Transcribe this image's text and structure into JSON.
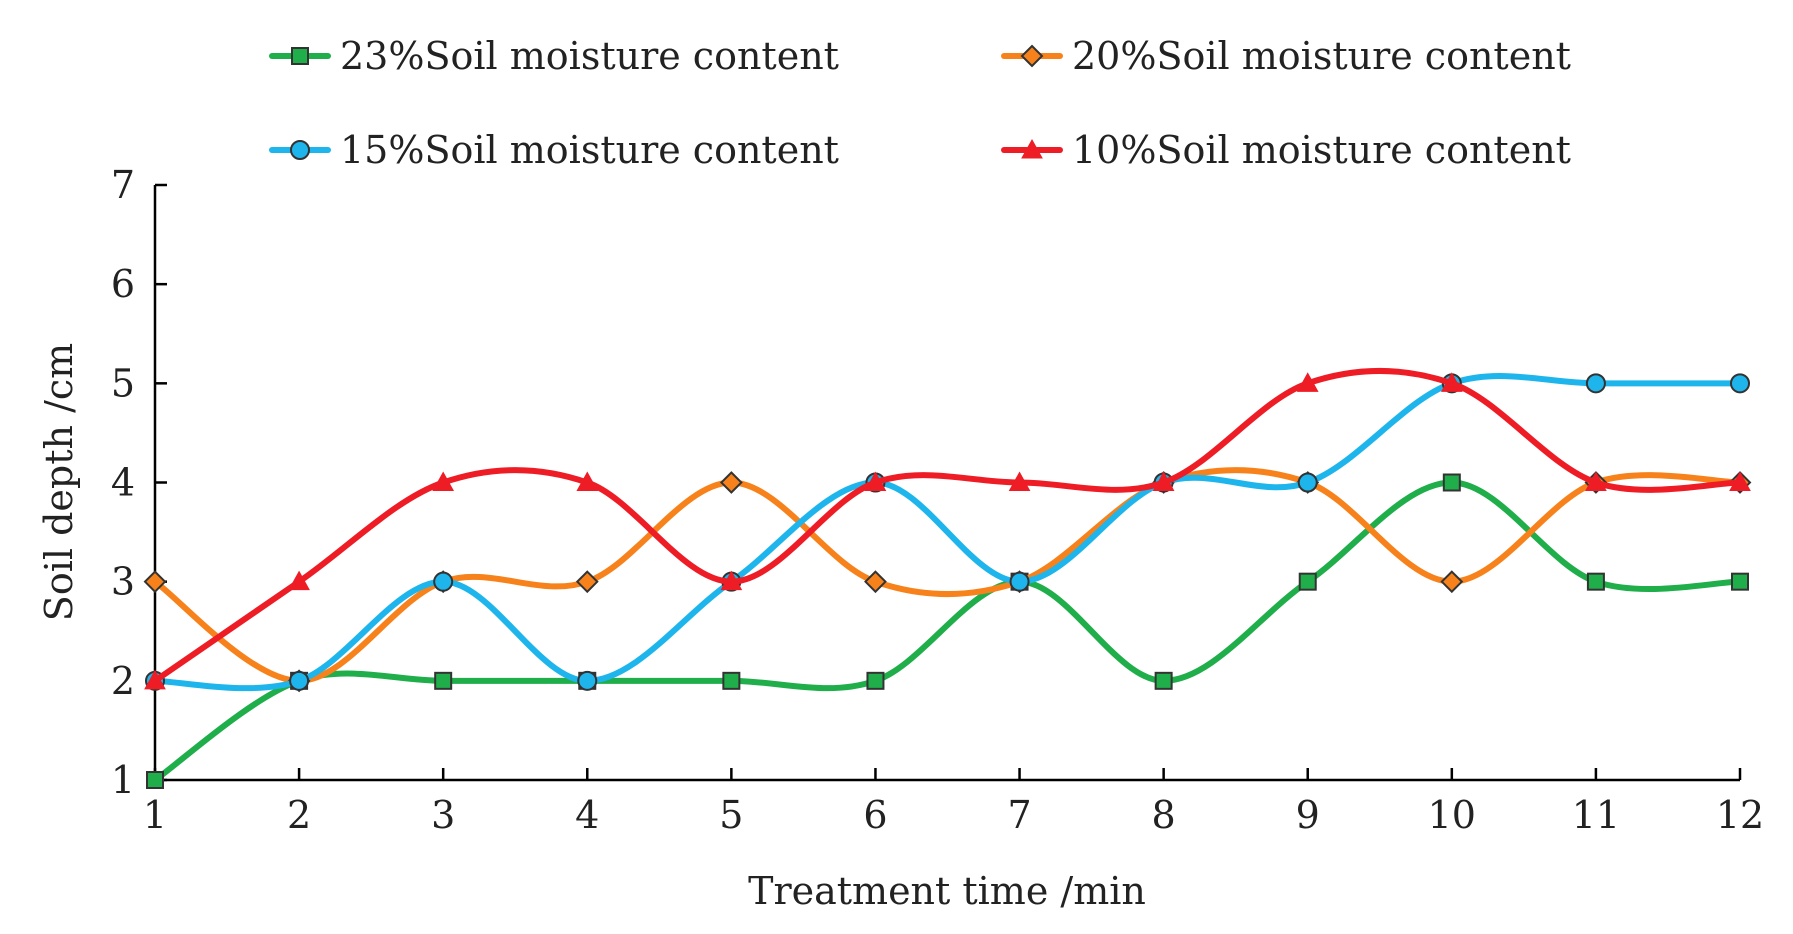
{
  "chart_data": {
    "type": "line",
    "title": "",
    "xlabel": "Treatment time /min",
    "ylabel": "Soil depth /cm",
    "x": [
      1,
      2,
      3,
      4,
      5,
      6,
      7,
      8,
      9,
      10,
      11,
      12
    ],
    "xlim": [
      1,
      12
    ],
    "ylim": [
      1,
      7
    ],
    "yticks": [
      1,
      2,
      3,
      4,
      5,
      6,
      7
    ],
    "grid": false,
    "legend_position": "top",
    "smooth": true,
    "series": [
      {
        "name": "23%Soil moisture content",
        "color": "#1fae4a",
        "marker": "square",
        "marker_fill": "#1fae4a",
        "values": [
          1,
          2,
          2,
          2,
          2,
          2,
          3,
          2,
          3,
          4,
          3,
          3
        ]
      },
      {
        "name": "20%Soil moisture content",
        "color": "#f7821b",
        "marker": "diamond",
        "marker_fill": "#f7821b",
        "values": [
          3,
          2,
          3,
          3,
          4,
          3,
          3,
          4,
          4,
          3,
          4,
          4
        ]
      },
      {
        "name": "15%Soil moisture content",
        "color": "#1eb5ec",
        "marker": "circle",
        "marker_fill": "#1eb5ec",
        "values": [
          2,
          2,
          3,
          2,
          3,
          4,
          3,
          4,
          4,
          5,
          5,
          5
        ]
      },
      {
        "name": "10%Soil moisture content",
        "color": "#ee1c25",
        "marker": "triangle",
        "marker_fill": "#ee1c25",
        "values": [
          2,
          3,
          4,
          4,
          3,
          4,
          4,
          4,
          5,
          5,
          4,
          4
        ]
      }
    ]
  }
}
